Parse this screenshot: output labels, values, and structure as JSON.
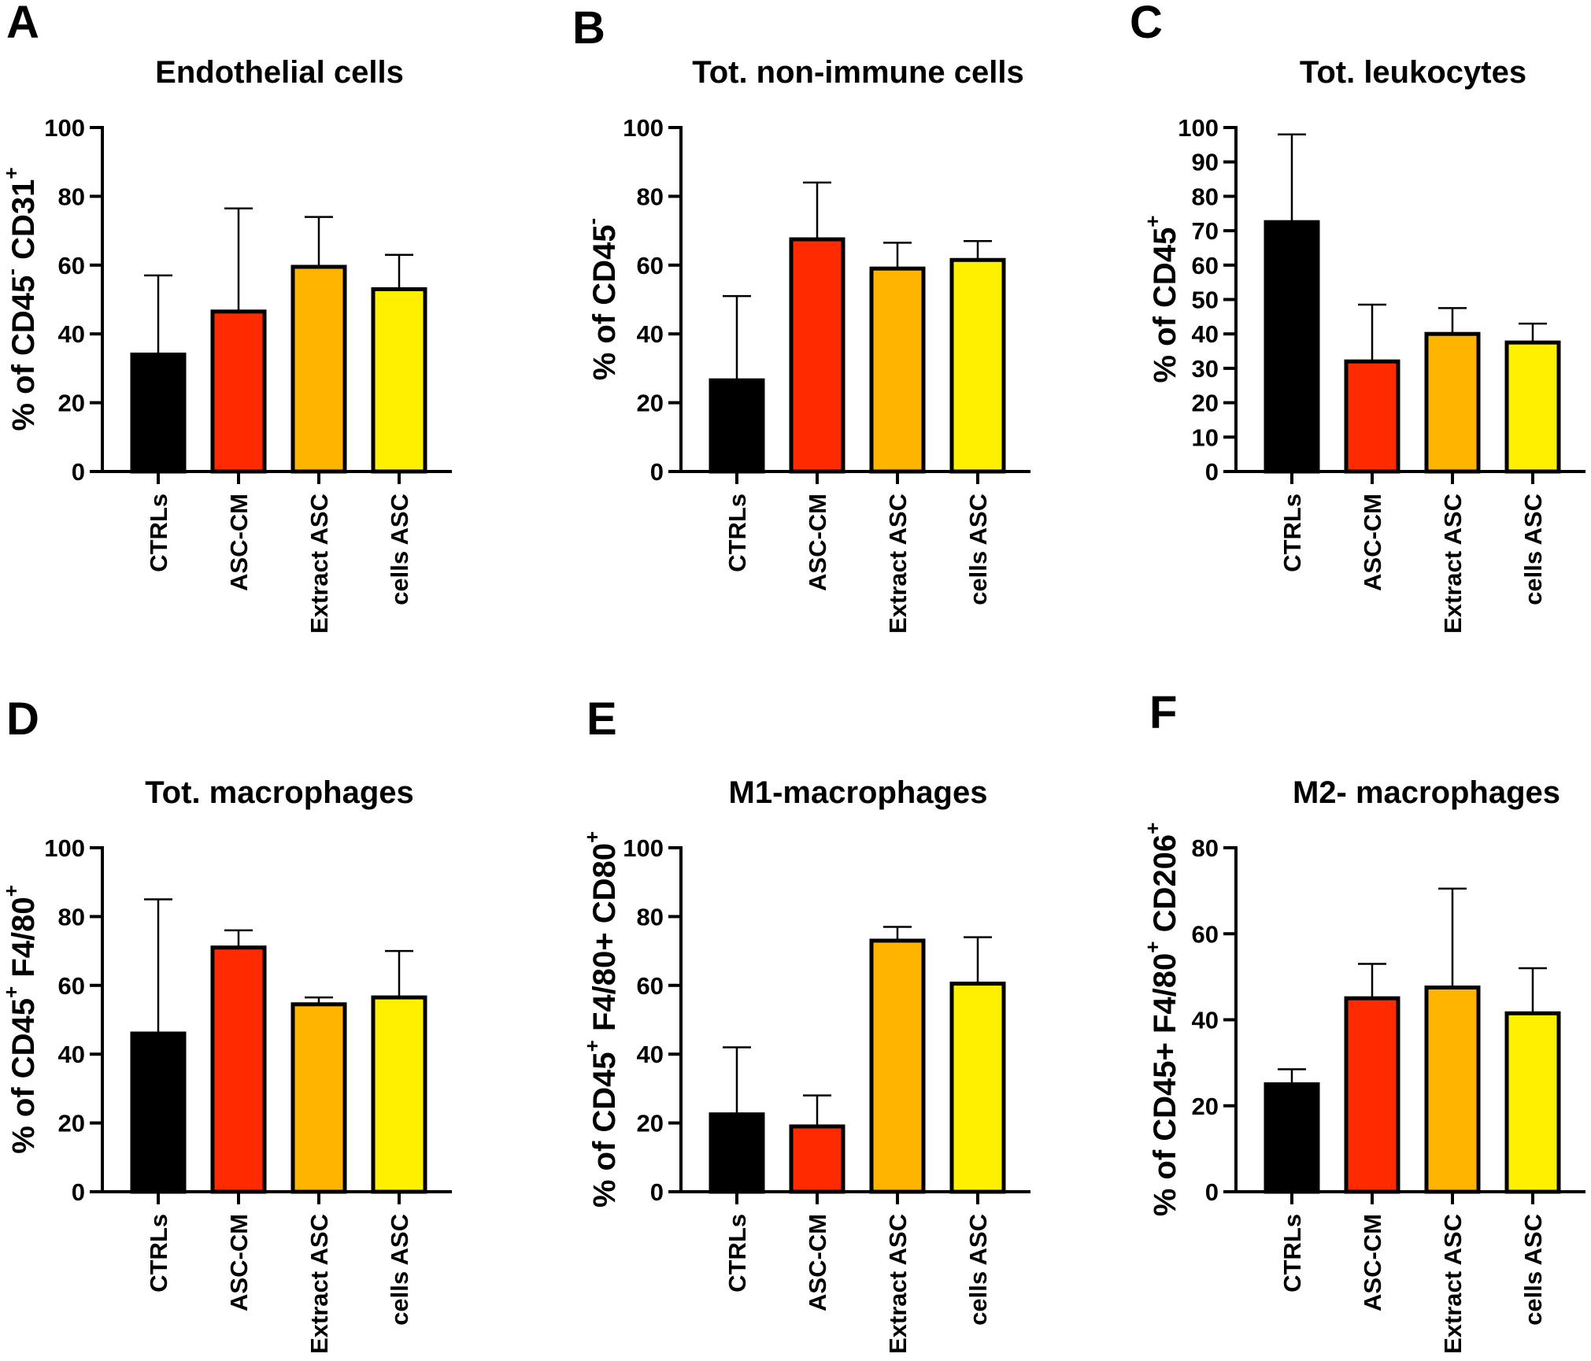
{
  "figure": {
    "colors": {
      "CTRLs": "#000000",
      "ASC-CM": "#ff2a00",
      "Extract ASC": "#ffb400",
      "cells ASC": "#fff000",
      "outline": "#000000"
    }
  },
  "chart_data": [
    {
      "panel": "A",
      "type": "bar",
      "title": "Endothelial cells",
      "ylabel_parts": [
        {
          "t": "% of CD45"
        },
        {
          "t": "-",
          "sup": true
        },
        {
          "t": " CD31"
        },
        {
          "t": "+",
          "sup": true
        }
      ],
      "categories": [
        "CTRLs",
        "ASC-CM",
        "Extract ASC",
        "cells ASC"
      ],
      "values": [
        34,
        46.5,
        59.5,
        53
      ],
      "errors": [
        23,
        30,
        14.5,
        10
      ],
      "ylim": [
        0,
        100
      ],
      "yticks": [
        0,
        20,
        40,
        60,
        80,
        100
      ]
    },
    {
      "panel": "B",
      "type": "bar",
      "title": "Tot. non-immune cells",
      "ylabel_parts": [
        {
          "t": "% of CD45"
        },
        {
          "t": "-",
          "sup": true
        }
      ],
      "categories": [
        "CTRLs",
        "ASC-CM",
        "Extract ASC",
        "cells ASC"
      ],
      "values": [
        26.5,
        67.5,
        59,
        61.5
      ],
      "errors": [
        24.5,
        16.5,
        7.5,
        5.5
      ],
      "ylim": [
        0,
        100
      ],
      "yticks": [
        0,
        20,
        40,
        60,
        80,
        100
      ]
    },
    {
      "panel": "C",
      "type": "bar",
      "title": "Tot. leukocytes",
      "ylabel_parts": [
        {
          "t": "% of CD45"
        },
        {
          "t": "+",
          "sup": true
        }
      ],
      "categories": [
        "CTRLs",
        "ASC-CM",
        "Extract ASC",
        "cells ASC"
      ],
      "values": [
        72.5,
        32,
        40,
        37.5
      ],
      "errors": [
        25.5,
        16.5,
        7.5,
        5.5
      ],
      "ylim": [
        0,
        100
      ],
      "yticks": [
        0,
        10,
        20,
        30,
        40,
        50,
        60,
        70,
        80,
        90,
        100
      ]
    },
    {
      "panel": "D",
      "type": "bar",
      "title": "Tot. macrophages",
      "ylabel_parts": [
        {
          "t": "% of CD45"
        },
        {
          "t": "+",
          "sup": true
        },
        {
          "t": " F4/80"
        },
        {
          "t": "+",
          "sup": true
        }
      ],
      "categories": [
        "CTRLs",
        "ASC-CM",
        "Extract ASC",
        "cells ASC"
      ],
      "values": [
        46,
        71,
        54.5,
        56.5
      ],
      "errors": [
        39,
        5,
        2,
        13.5
      ],
      "ylim": [
        0,
        100
      ],
      "yticks": [
        0,
        20,
        40,
        60,
        80,
        100
      ]
    },
    {
      "panel": "E",
      "type": "bar",
      "title": "M1-macrophages",
      "ylabel_parts": [
        {
          "t": "% of CD45"
        },
        {
          "t": "+",
          "sup": true
        },
        {
          "t": " F4/80+ CD80"
        },
        {
          "t": "+",
          "sup": true
        }
      ],
      "categories": [
        "CTRLs",
        "ASC-CM",
        "Extract ASC",
        "cells ASC"
      ],
      "values": [
        22.5,
        19,
        73,
        60.5
      ],
      "errors": [
        19.5,
        9,
        4,
        13.5
      ],
      "ylim": [
        0,
        100
      ],
      "yticks": [
        0,
        20,
        40,
        60,
        80,
        100
      ]
    },
    {
      "panel": "F",
      "type": "bar",
      "title": "M2- macrophages",
      "ylabel_parts": [
        {
          "t": "% of CD45+ F4/80"
        },
        {
          "t": "+",
          "sup": true
        },
        {
          "t": " CD206"
        },
        {
          "t": "+",
          "sup": true
        }
      ],
      "categories": [
        "CTRLs",
        "ASC-CM",
        "Extract ASC",
        "cells ASC"
      ],
      "values": [
        25,
        45,
        47.5,
        41.5
      ],
      "errors": [
        3.5,
        8,
        23,
        10.5
      ],
      "ylim": [
        0,
        80
      ],
      "yticks": [
        0,
        20,
        40,
        60,
        80
      ]
    }
  ]
}
